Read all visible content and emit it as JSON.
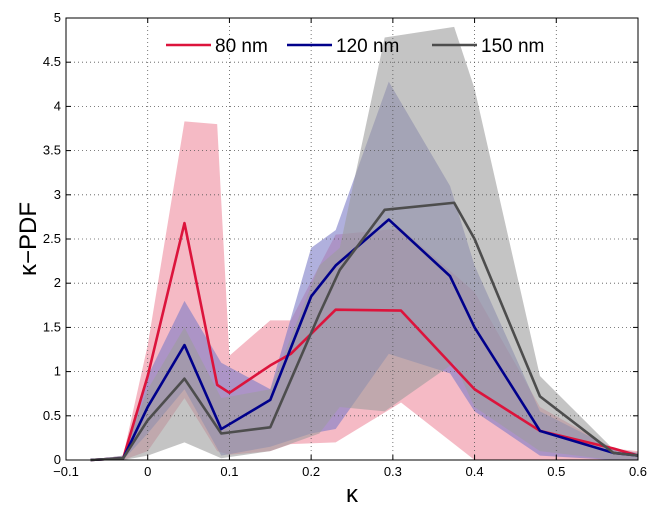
{
  "chart_data": {
    "type": "line",
    "xlabel": "κ",
    "ylabel": "κ−PDF",
    "xlim": [
      -0.1,
      0.6
    ],
    "ylim": [
      0,
      5
    ],
    "xticks": [
      -0.1,
      0,
      0.1,
      0.2,
      0.3,
      0.4,
      0.5,
      0.6
    ],
    "xtick_labels": [
      "−0.1",
      "0",
      "0.1",
      "0.2",
      "0.3",
      "0.4",
      "0.5",
      "0.6"
    ],
    "yticks": [
      0,
      0.5,
      1,
      1.5,
      2,
      2.5,
      3,
      3.5,
      4,
      4.5,
      5
    ],
    "ytick_labels": [
      "0",
      "0.5",
      "1",
      "1.5",
      "2",
      "2.5",
      "3",
      "3.5",
      "4",
      "4.5",
      "5"
    ],
    "grid": true,
    "legend_position": "top-center",
    "series": [
      {
        "name": "80 nm",
        "color": "#dc143c",
        "band_color": "#ee8c9f",
        "x": [
          -0.07,
          -0.03,
          0.0,
          0.045,
          0.085,
          0.1,
          0.15,
          0.175,
          0.23,
          0.31,
          0.4,
          0.48,
          0.57,
          0.6
        ],
        "y": [
          0,
          0.02,
          0.95,
          2.68,
          0.85,
          0.76,
          1.07,
          1.2,
          1.7,
          1.69,
          0.8,
          0.33,
          0.13,
          0.05
        ],
        "upper": [
          0,
          0.05,
          1.3,
          3.83,
          3.8,
          1.18,
          1.58,
          1.58,
          2.55,
          2.62,
          1.9,
          0.6,
          0.13,
          0.1
        ],
        "lower": [
          0,
          0,
          0.1,
          0.7,
          0.1,
          0.06,
          0.1,
          0.18,
          0.2,
          0.65,
          0,
          0,
          0,
          0
        ]
      },
      {
        "name": "120 nm",
        "color": "#00008b",
        "band_color": "#7c7cc6",
        "x": [
          -0.07,
          -0.03,
          0.0,
          0.045,
          0.09,
          0.15,
          0.2,
          0.23,
          0.295,
          0.37,
          0.4,
          0.48,
          0.57,
          0.6
        ],
        "y": [
          0,
          0.02,
          0.6,
          1.3,
          0.35,
          0.68,
          1.85,
          2.2,
          2.72,
          2.08,
          1.5,
          0.33,
          0.08,
          0.05
        ],
        "upper": [
          0,
          0.05,
          0.95,
          1.8,
          1.1,
          0.8,
          2.4,
          2.6,
          4.28,
          3.1,
          2.2,
          0.55,
          0.13,
          0.08
        ],
        "lower": [
          0,
          0,
          0.3,
          0.8,
          0.05,
          0.15,
          0.3,
          0.35,
          1.2,
          0.98,
          0.55,
          0.05,
          0,
          0
        ]
      },
      {
        "name": "150 nm",
        "color": "#4d4d4d",
        "band_color": "#9d9d9d",
        "x": [
          -0.07,
          -0.03,
          0.0,
          0.045,
          0.09,
          0.15,
          0.21,
          0.235,
          0.29,
          0.375,
          0.4,
          0.48,
          0.57,
          0.6
        ],
        "y": [
          0,
          0.02,
          0.45,
          0.92,
          0.3,
          0.37,
          1.65,
          2.15,
          2.83,
          2.91,
          2.5,
          0.72,
          0.08,
          0.05
        ],
        "upper": [
          0,
          0.05,
          0.8,
          1.5,
          0.7,
          0.8,
          2.2,
          2.4,
          4.78,
          4.9,
          4.2,
          0.95,
          0.12,
          0.08
        ],
        "lower": [
          0,
          0,
          0.05,
          0.2,
          0.02,
          0.1,
          0.3,
          0.6,
          0.55,
          1.1,
          0.6,
          0.1,
          0,
          0
        ]
      }
    ]
  }
}
